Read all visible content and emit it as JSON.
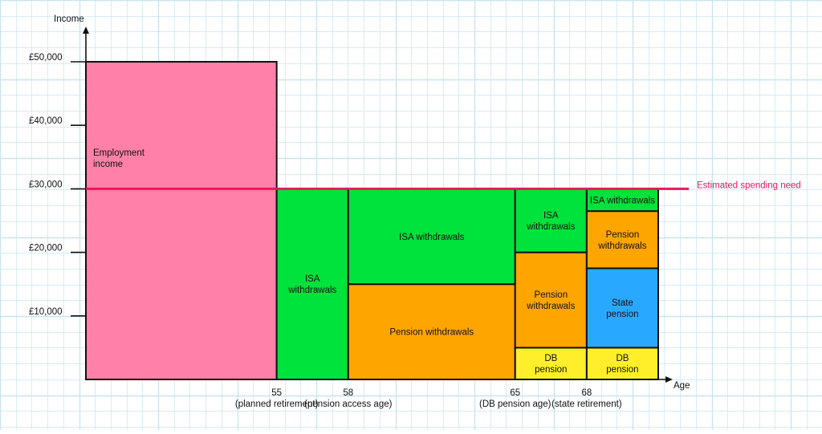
{
  "chart_data": {
    "type": "stacked-bar (variable-width, age-based income mosaic)",
    "xlabel": "Age",
    "ylabel": "Income",
    "ylim": [
      0,
      55000
    ],
    "xlim": [
      47,
      77
    ],
    "yticks": [
      {
        "value": 10000,
        "label": "£10,000"
      },
      {
        "value": 20000,
        "label": "£20,000"
      },
      {
        "value": 30000,
        "label": "£30,000"
      },
      {
        "value": 40000,
        "label": "£40,000"
      },
      {
        "value": 50000,
        "label": "£50,000"
      }
    ],
    "xticks": [
      {
        "value": 55,
        "label": "55",
        "sublabel": "(planned retirement)"
      },
      {
        "value": 58,
        "label": "58",
        "sublabel": "(pension access age)"
      },
      {
        "value": 65,
        "label": "65",
        "sublabel": "(DB pension age)"
      },
      {
        "value": 68,
        "label": "68",
        "sublabel": "(state retirement)"
      }
    ],
    "grid": true,
    "colors": {
      "employment": "#ff80a8",
      "isa": "#00e23c",
      "pension": "#ffa500",
      "db": "#ffee2a",
      "state": "#29a8ff",
      "spending_line": "#e8185e",
      "grid": "#cbe4ee"
    },
    "segments": [
      {
        "id": "employment",
        "label": "Employment income",
        "x0": 47,
        "x1": 55,
        "y0": 0,
        "y1": 50000,
        "color": "employment",
        "label_align": "start"
      },
      {
        "id": "isa-55-58",
        "label": "ISA withdrawals",
        "x0": 55,
        "x1": 58,
        "y0": 0,
        "y1": 30000,
        "color": "isa"
      },
      {
        "id": "pension-58-65",
        "label": "Pension withdrawals",
        "x0": 58,
        "x1": 65,
        "y0": 0,
        "y1": 15000,
        "color": "pension"
      },
      {
        "id": "isa-58-65",
        "label": "ISA withdrawals",
        "x0": 58,
        "x1": 65,
        "y0": 15000,
        "y1": 30000,
        "color": "isa"
      },
      {
        "id": "db-65-68",
        "label": "DB pension",
        "x0": 65,
        "x1": 68,
        "y0": 0,
        "y1": 5000,
        "color": "db"
      },
      {
        "id": "pension-65-68",
        "label": "Pension withdrawals",
        "x0": 65,
        "x1": 68,
        "y0": 5000,
        "y1": 20000,
        "color": "pension"
      },
      {
        "id": "isa-65-68",
        "label": "ISA withdrawals",
        "x0": 65,
        "x1": 68,
        "y0": 20000,
        "y1": 30000,
        "color": "isa"
      },
      {
        "id": "db-68-71",
        "label": "DB pension",
        "x0": 68,
        "x1": 71,
        "y0": 0,
        "y1": 5000,
        "color": "db"
      },
      {
        "id": "state-68-71",
        "label": "State pension",
        "x0": 68,
        "x1": 71,
        "y0": 5000,
        "y1": 17500,
        "color": "state"
      },
      {
        "id": "pension-68-71",
        "label": "Pension withdrawals",
        "x0": 68,
        "x1": 71,
        "y0": 17500,
        "y1": 26500,
        "color": "pension"
      },
      {
        "id": "isa-68-71",
        "label": "ISA withdrawals",
        "x0": 68,
        "x1": 71,
        "y0": 26500,
        "y1": 30000,
        "color": "isa"
      }
    ],
    "annotations": [
      {
        "id": "spending-need",
        "type": "hline",
        "y": 30000,
        "x0": 47,
        "x1": 73,
        "label": "Estimated spending need",
        "color": "spending_line"
      }
    ]
  }
}
